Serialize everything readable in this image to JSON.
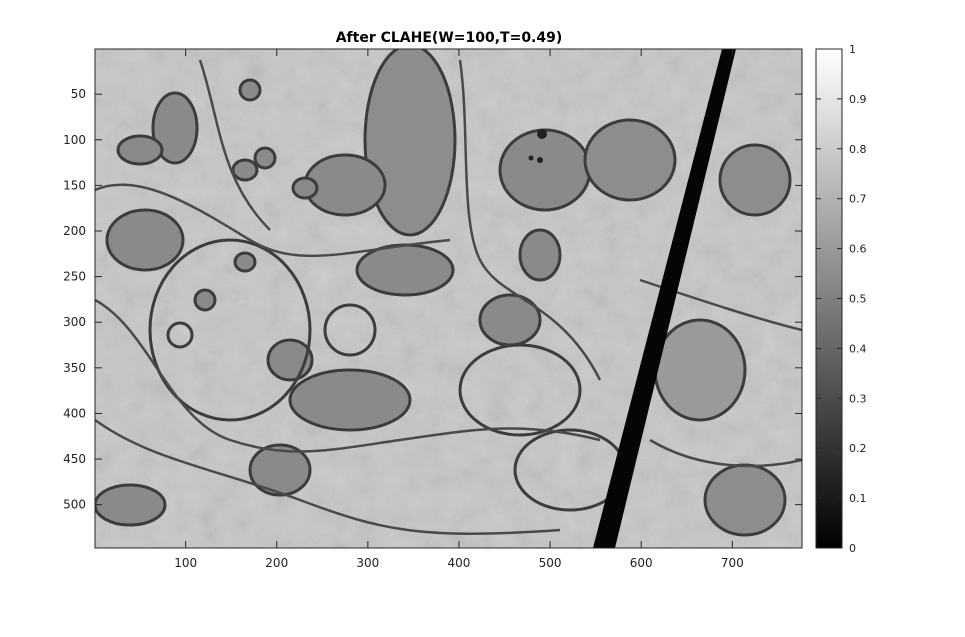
{
  "figure": {
    "title": "After CLAHE(W=100,T=0.49)",
    "image": {
      "description_semantic": "grayscale electron micrograph of tissue with organelles",
      "x_range": [
        1,
        776
      ],
      "y_range": [
        1,
        547
      ]
    },
    "x_ticks": [
      "100",
      "200",
      "300",
      "400",
      "500",
      "600",
      "700"
    ],
    "x_tick_values": [
      100,
      200,
      300,
      400,
      500,
      600,
      700
    ],
    "y_ticks": [
      "50",
      "100",
      "150",
      "200",
      "250",
      "300",
      "350",
      "400",
      "450",
      "500"
    ],
    "y_tick_values": [
      50,
      100,
      150,
      200,
      250,
      300,
      350,
      400,
      450,
      500
    ],
    "colorbar": {
      "colormap": "gray",
      "range": [
        0,
        1
      ],
      "ticks": [
        "0",
        "0.1",
        "0.2",
        "0.3",
        "0.4",
        "0.5",
        "0.6",
        "0.7",
        "0.8",
        "0.9",
        "1"
      ],
      "tick_values": [
        0,
        0.1,
        0.2,
        0.3,
        0.4,
        0.5,
        0.6,
        0.7,
        0.8,
        0.9,
        1.0
      ]
    }
  }
}
